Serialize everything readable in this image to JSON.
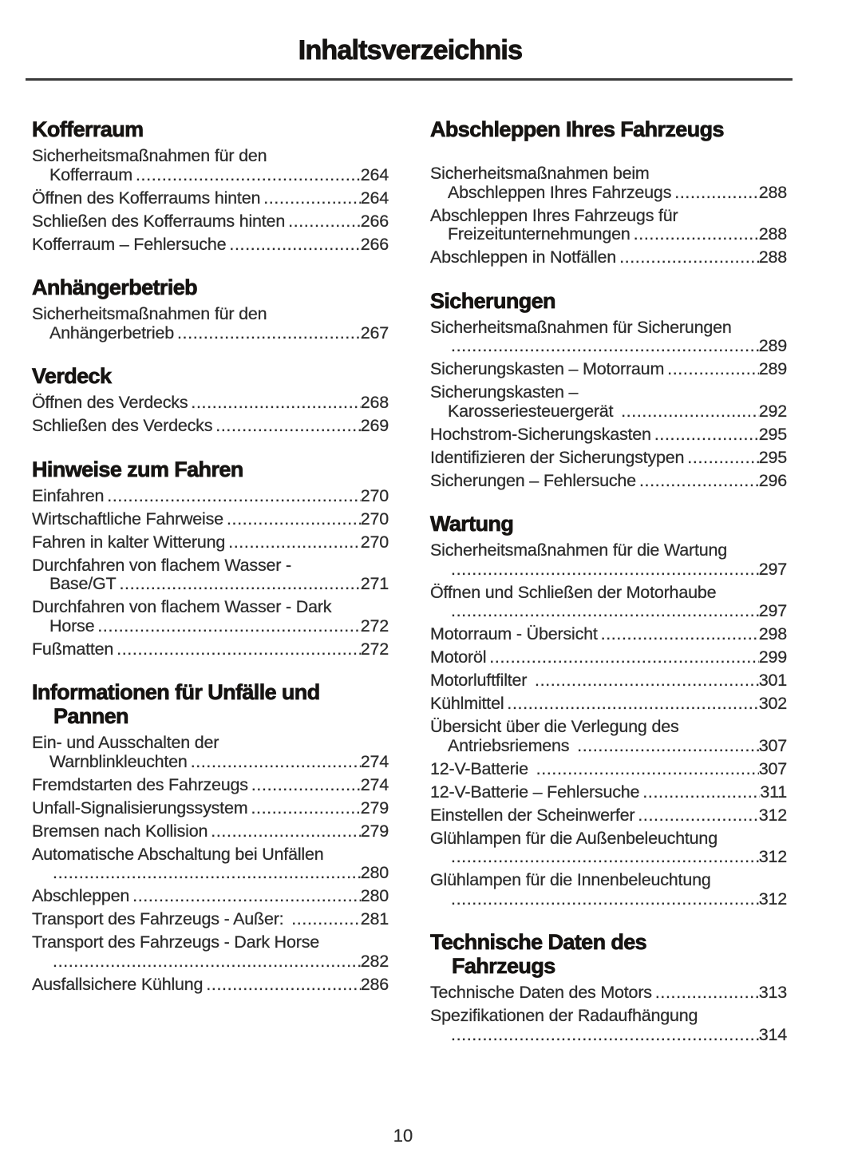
{
  "title": "Inhaltsverzeichnis",
  "footer": {
    "page_number": "10"
  },
  "text_colors": {
    "heading": "#161412",
    "body": "#2c2c2c",
    "rule": "#3a3a3a"
  },
  "columns": {
    "left": [
      {
        "title_lines": [
          "Kofferraum"
        ],
        "entries": [
          {
            "pre": [
              "Sicherheitsmaßnahmen für den"
            ],
            "last": "Kofferraum",
            "indent_last": true,
            "page": "264"
          },
          {
            "pre": [],
            "last": "Öffnen des Kofferraums hinten",
            "indent_last": false,
            "page": "264"
          },
          {
            "pre": [],
            "last": "Schließen des Kofferraums hinten",
            "indent_last": false,
            "page": "266"
          },
          {
            "pre": [],
            "last": "Kofferraum – Fehlersuche",
            "indent_last": false,
            "page": "266"
          }
        ]
      },
      {
        "title_lines": [
          "Anhängerbetrieb"
        ],
        "entries": [
          {
            "pre": [
              "Sicherheitsmaßnahmen für den"
            ],
            "last": "Anhängerbetrieb",
            "indent_last": true,
            "page": "267"
          }
        ]
      },
      {
        "title_lines": [
          "Verdeck"
        ],
        "entries": [
          {
            "pre": [],
            "last": "Öffnen des Verdecks",
            "indent_last": false,
            "page": "268"
          },
          {
            "pre": [],
            "last": "Schließen des Verdecks",
            "indent_last": false,
            "page": "269"
          }
        ]
      },
      {
        "title_lines": [
          "Hinweise zum Fahren"
        ],
        "entries": [
          {
            "pre": [],
            "last": "Einfahren",
            "indent_last": false,
            "page": "270"
          },
          {
            "pre": [],
            "last": "Wirtschaftliche Fahrweise",
            "indent_last": false,
            "page": "270"
          },
          {
            "pre": [],
            "last": "Fahren in kalter Witterung",
            "indent_last": false,
            "page": "270"
          },
          {
            "pre": [
              "Durchfahren von flachem Wasser -"
            ],
            "last": "Base/GT",
            "indent_last": true,
            "page": "271"
          },
          {
            "pre": [
              "Durchfahren von flachem Wasser - Dark"
            ],
            "last": "Horse",
            "indent_last": true,
            "page": "272"
          },
          {
            "pre": [],
            "last": "Fußmatten",
            "indent_last": false,
            "page": "272"
          }
        ]
      },
      {
        "title_lines": [
          "Informationen für Unfälle und",
          "Pannen"
        ],
        "entries": [
          {
            "pre": [
              "Ein- und Ausschalten der"
            ],
            "last": "Warnblinkleuchten",
            "indent_last": true,
            "page": "274"
          },
          {
            "pre": [],
            "last": "Fremdstarten des Fahrzeugs",
            "indent_last": false,
            "page": "274"
          },
          {
            "pre": [],
            "last": "Unfall-Signalisierungssystem",
            "indent_last": false,
            "page": "279"
          },
          {
            "pre": [],
            "last": "Bremsen nach Kollision",
            "indent_last": false,
            "page": "279"
          },
          {
            "pre": [
              "Automatische Abschaltung bei Unfällen"
            ],
            "last": "",
            "indent_last": true,
            "page": "280"
          },
          {
            "pre": [],
            "last": "Abschleppen",
            "indent_last": false,
            "page": "280"
          },
          {
            "pre": [],
            "last": "Transport des Fahrzeugs - Außer: ",
            "indent_last": false,
            "page": "281"
          },
          {
            "pre": [
              "Transport des Fahrzeugs - Dark Horse"
            ],
            "last": "",
            "indent_last": true,
            "page": "282"
          },
          {
            "pre": [],
            "last": "Ausfallsichere Kühlung",
            "indent_last": false,
            "page": "286"
          }
        ]
      }
    ],
    "right": [
      {
        "title_lines": [
          "Abschleppen Ihres Fahrzeugs"
        ],
        "extra_gap": true,
        "entries": [
          {
            "pre": [
              "Sicherheitsmaßnahmen beim"
            ],
            "last": "Abschleppen Ihres Fahrzeugs",
            "indent_last": true,
            "page": "288"
          },
          {
            "pre": [
              "Abschleppen Ihres Fahrzeugs für"
            ],
            "last": "Freizeitunternehmungen",
            "indent_last": true,
            "page": "288"
          },
          {
            "pre": [],
            "last": "Abschleppen in Notfällen",
            "indent_last": false,
            "page": "288"
          }
        ]
      },
      {
        "title_lines": [
          "Sicherungen"
        ],
        "entries": [
          {
            "pre": [
              "Sicherheitsmaßnahmen für Sicherungen"
            ],
            "last": "",
            "indent_last": true,
            "page": "289"
          },
          {
            "pre": [],
            "last": "Sicherungskasten – Motorraum",
            "indent_last": false,
            "page": "289"
          },
          {
            "pre": [
              "Sicherungskasten –"
            ],
            "last": "Karosseriesteuergerät ",
            "indent_last": true,
            "page": "292"
          },
          {
            "pre": [],
            "last": "Hochstrom-Sicherungskasten",
            "indent_last": false,
            "page": "295"
          },
          {
            "pre": [],
            "last": "Identifizieren der Sicherungstypen",
            "indent_last": false,
            "page": "295"
          },
          {
            "pre": [],
            "last": "Sicherungen – Fehlersuche",
            "indent_last": false,
            "page": "296"
          }
        ]
      },
      {
        "title_lines": [
          "Wartung"
        ],
        "entries": [
          {
            "pre": [
              "Sicherheitsmaßnahmen für die Wartung"
            ],
            "last": "",
            "indent_last": true,
            "page": "297"
          },
          {
            "pre": [
              "Öffnen und Schließen der Motorhaube"
            ],
            "last": "",
            "indent_last": true,
            "page": "297"
          },
          {
            "pre": [],
            "last": "Motorraum - Übersicht",
            "indent_last": false,
            "page": "298"
          },
          {
            "pre": [],
            "last": "Motoröl",
            "indent_last": false,
            "page": "299"
          },
          {
            "pre": [],
            "last": "Motorluftfilter ",
            "indent_last": false,
            "page": "301"
          },
          {
            "pre": [],
            "last": "Kühlmittel",
            "indent_last": false,
            "page": "302"
          },
          {
            "pre": [
              "Übersicht über die Verlegung des"
            ],
            "last": "Antriebsriemens ",
            "indent_last": true,
            "page": "307"
          },
          {
            "pre": [],
            "last": "12-V-Batterie ",
            "indent_last": false,
            "page": "307"
          },
          {
            "pre": [],
            "last": "12-V-Batterie – Fehlersuche",
            "indent_last": false,
            "page": "311"
          },
          {
            "pre": [],
            "last": "Einstellen der Scheinwerfer",
            "indent_last": false,
            "page": "312"
          },
          {
            "pre": [
              "Glühlampen für die Außenbeleuchtung"
            ],
            "last": "",
            "indent_last": true,
            "page": "312"
          },
          {
            "pre": [
              "Glühlampen für die Innenbeleuchtung"
            ],
            "last": "",
            "indent_last": true,
            "page": "312"
          }
        ]
      },
      {
        "title_lines": [
          "Technische Daten des",
          "Fahrzeugs"
        ],
        "entries": [
          {
            "pre": [],
            "last": "Technische Daten des Motors",
            "indent_last": false,
            "page": "313"
          },
          {
            "pre": [
              "Spezifikationen der Radaufhängung"
            ],
            "last": "",
            "indent_last": true,
            "page": "314"
          }
        ]
      }
    ]
  }
}
